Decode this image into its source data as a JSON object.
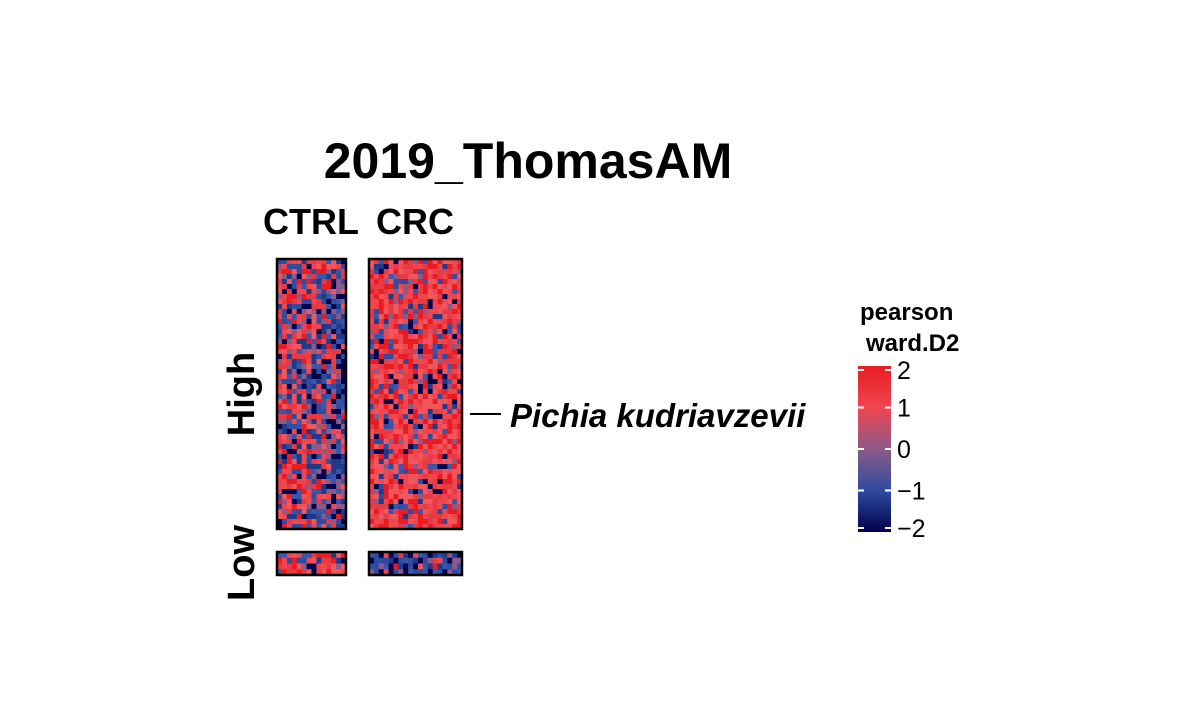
{
  "chart_data": {
    "type": "heatmap",
    "title": "2019_ThomasAM",
    "column_groups": [
      "CTRL",
      "CRC"
    ],
    "row_groups": [
      "High",
      "Low"
    ],
    "row_annotation": {
      "label": "Pichia kudriavzevii",
      "row_group": "High"
    },
    "legend": {
      "title_lines": [
        "pearson",
        "ward.D2"
      ],
      "ticks": [
        "2",
        "1",
        "0",
        "−1",
        "−2"
      ],
      "tick_values": [
        2,
        1,
        0,
        -1,
        -2
      ],
      "range": [
        -2,
        2
      ],
      "position": "right"
    },
    "color_scale": {
      "low": "#00004c",
      "mid_low": "#2f4c9e",
      "mid": "#8c5a88",
      "mid_high": "#f0464f",
      "high": "#e81c23"
    },
    "pattern": {
      "High": {
        "CTRL": "mixed, blue-leaning right columns",
        "CRC": "predominantly red"
      },
      "Low": {
        "CTRL": "predominantly red",
        "CRC": "predominantly blue"
      }
    }
  }
}
